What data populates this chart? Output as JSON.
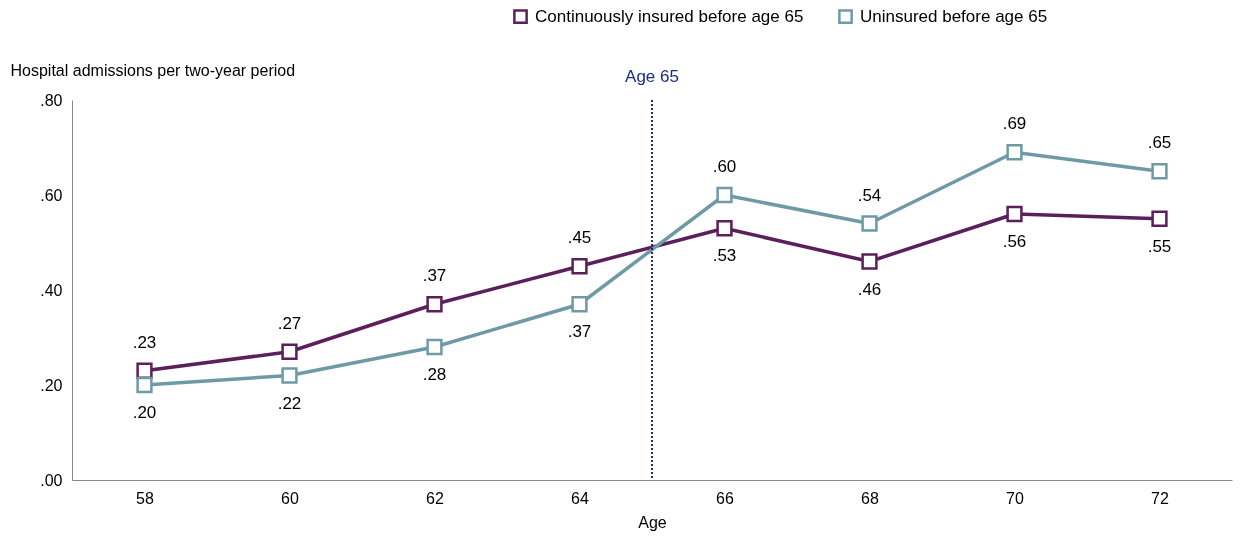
{
  "chart_data": {
    "type": "line",
    "ylabel": "Hospital admissions per two-year period",
    "xlabel": "Age",
    "x": [
      58,
      60,
      62,
      64,
      66,
      68,
      70,
      72
    ],
    "xlim": [
      57,
      73
    ],
    "xticks": [
      58,
      60,
      62,
      64,
      66,
      68,
      70,
      72
    ],
    "ylim": [
      0,
      0.8
    ],
    "yticks": [
      {
        "value": 0,
        "label": ".00"
      },
      {
        "value": 0.2,
        "label": ".20"
      },
      {
        "value": 0.4,
        "label": ".40"
      },
      {
        "value": 0.6,
        "label": ".60"
      },
      {
        "value": 0.8,
        "label": ".80"
      }
    ],
    "series": [
      {
        "name": "Continuously insured before age 65",
        "color": "#5b1f5b",
        "values": [
          0.23,
          0.27,
          0.37,
          0.45,
          0.53,
          0.46,
          0.56,
          0.55
        ],
        "value_labels": [
          ".23",
          ".27",
          ".37",
          ".45",
          ".53",
          ".46",
          ".56",
          ".55"
        ]
      },
      {
        "name": "Uninsured before age 65",
        "color": "#6e9aa6",
        "values": [
          0.2,
          0.22,
          0.28,
          0.37,
          0.6,
          0.54,
          0.69,
          0.65
        ],
        "value_labels": [
          ".20",
          ".22",
          ".28",
          ".37",
          ".60",
          ".54",
          ".69",
          ".65"
        ]
      }
    ],
    "ref_lines": [
      {
        "axis": "x",
        "value": 65,
        "label": "Age 65",
        "color": "#1a2f80",
        "line_style": "dotted"
      }
    ],
    "legend": "top right",
    "marker": "square",
    "grid": false,
    "line_style": "solid"
  }
}
